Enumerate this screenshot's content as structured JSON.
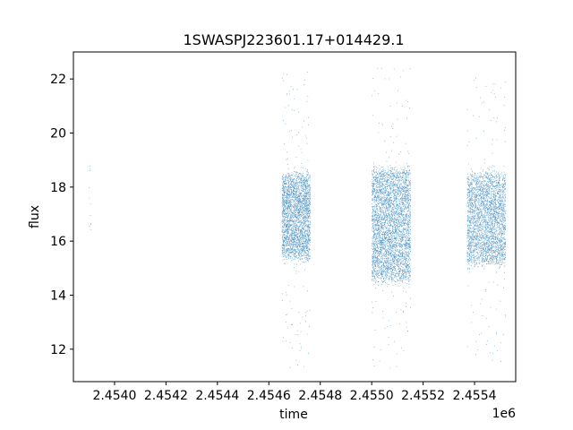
{
  "chart_data": {
    "type": "scatter",
    "title": "1SWASPJ223601.17+014429.1",
    "xlabel": "time",
    "ylabel": "flux",
    "x_offset_label": "1e6",
    "xlim": [
      2.45384,
      2.45556
    ],
    "ylim": [
      10.8,
      23.0
    ],
    "x_ticks": [
      2.454,
      2.4542,
      2.4544,
      2.4546,
      2.4548,
      2.455,
      2.4552,
      2.4554
    ],
    "x_tick_labels": [
      "2.4540",
      "2.4542",
      "2.4544",
      "2.4546",
      "2.4548",
      "2.4550",
      "2.4552",
      "2.4554"
    ],
    "y_ticks": [
      12,
      14,
      16,
      18,
      20,
      22
    ],
    "y_tick_labels": [
      "12",
      "14",
      "16",
      "18",
      "20",
      "22"
    ],
    "grid": false,
    "marker_color": "#1f77b4",
    "series": [
      {
        "segments": [
          {
            "x_start": 2.4539,
            "x_end": 2.45391,
            "y_center": 17.5,
            "y_band": 1.3,
            "y_min": 16.4,
            "y_max": 19.3,
            "n": 12
          },
          {
            "x_start": 2.45465,
            "x_end": 2.45476,
            "y_center": 16.9,
            "y_band": 1.5,
            "y_min": 11.2,
            "y_max": 22.4,
            "n": 3000
          },
          {
            "x_start": 2.455,
            "x_end": 2.45515,
            "y_center": 16.6,
            "y_band": 2.0,
            "y_min": 11.2,
            "y_max": 22.4,
            "n": 4200
          },
          {
            "x_start": 2.45537,
            "x_end": 2.45552,
            "y_center": 16.8,
            "y_band": 1.6,
            "y_min": 11.4,
            "y_max": 22.3,
            "n": 3200
          }
        ]
      }
    ]
  }
}
